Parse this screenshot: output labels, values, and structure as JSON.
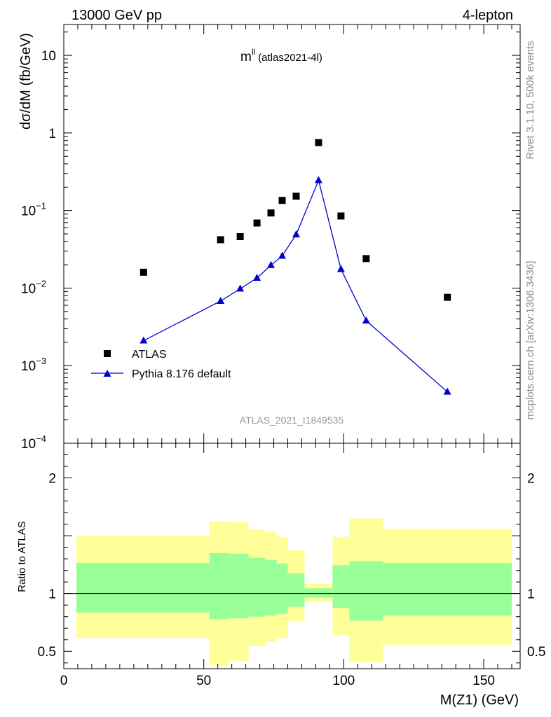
{
  "header": {
    "left": "13000 GeV pp",
    "right": "4-lepton"
  },
  "plot_label": {
    "main": "m",
    "sup": "ll",
    "sub": "(atlas2021-4l)"
  },
  "side_label_top": "Rivet 3.1.10,  500k events",
  "side_label_bottom": "mcplots.cern.ch [arXiv:1306.3436]",
  "watermark": "ATLAS_2021_I1849535",
  "colors": {
    "data": "#000000",
    "mc": "#0000cc",
    "band_inner": "#99ff99",
    "band_outer": "#ffff99",
    "watermark": "#999999"
  },
  "chart_data": [
    {
      "type": "scatter",
      "ylabel": "dσ/dM (fb/GeV)",
      "yscale": "log",
      "ylim": [
        0.0001,
        25
      ],
      "xlim": [
        0,
        163
      ],
      "y_ticks": [
        {
          "value": 10,
          "base": "10",
          "exp": ""
        },
        {
          "value": 1,
          "base": "1",
          "exp": ""
        },
        {
          "value": 0.1,
          "base": "10",
          "exp": "−1"
        },
        {
          "value": 0.01,
          "base": "10",
          "exp": "−2"
        },
        {
          "value": 0.001,
          "base": "10",
          "exp": "−3"
        },
        {
          "value": 0.0001,
          "base": "10",
          "exp": "−4"
        }
      ],
      "legend_position": "lower-left",
      "series": [
        {
          "name": "ATLAS",
          "marker": "square",
          "x": [
            28.5,
            56,
            63,
            69,
            74,
            78,
            83,
            91,
            99,
            108,
            137
          ],
          "y": [
            0.016,
            0.042,
            0.046,
            0.069,
            0.093,
            0.135,
            0.153,
            0.75,
            0.085,
            0.024,
            0.0076
          ]
        },
        {
          "name": "Pythia 8.176 default",
          "marker": "triangle",
          "x": [
            28.5,
            56,
            63,
            69,
            74,
            78,
            83,
            91,
            99,
            108,
            137
          ],
          "y": [
            0.0021,
            0.0068,
            0.0098,
            0.0135,
            0.0197,
            0.026,
            0.049,
            0.245,
            0.0175,
            0.0038,
            0.00046
          ]
        }
      ]
    },
    {
      "type": "area",
      "ylabel": "Ratio to ATLAS",
      "xlabel": "M(Z1) (GeV)",
      "xlim": [
        0,
        163
      ],
      "ylim": [
        0.35,
        2.3
      ],
      "x_ticks": [
        0,
        50,
        100,
        150
      ],
      "y_ticks": [
        {
          "value": 2,
          "label": "2"
        },
        {
          "value": 1,
          "label": "1"
        },
        {
          "value": 0.5,
          "label": "0.5"
        }
      ],
      "reference_line": 1,
      "bins": [
        {
          "x0": 4.5,
          "x1": 52,
          "inner": [
            0.835,
            1.265
          ],
          "outer": [
            0.615,
            1.5
          ]
        },
        {
          "x0": 52,
          "x1": 59,
          "inner": [
            0.78,
            1.35
          ],
          "outer": [
            0.38,
            1.625
          ]
        },
        {
          "x0": 59,
          "x1": 66,
          "inner": [
            0.785,
            1.345
          ],
          "outer": [
            0.415,
            1.615
          ]
        },
        {
          "x0": 66,
          "x1": 72,
          "inner": [
            0.8,
            1.31
          ],
          "outer": [
            0.545,
            1.555
          ]
        },
        {
          "x0": 72,
          "x1": 76,
          "inner": [
            0.81,
            1.29
          ],
          "outer": [
            0.58,
            1.535
          ]
        },
        {
          "x0": 76,
          "x1": 80,
          "inner": [
            0.825,
            1.26
          ],
          "outer": [
            0.615,
            1.49
          ]
        },
        {
          "x0": 80,
          "x1": 86,
          "inner": [
            0.885,
            1.175
          ],
          "outer": [
            0.76,
            1.375
          ]
        },
        {
          "x0": 86,
          "x1": 96,
          "inner": [
            0.965,
            1.045
          ],
          "outer": [
            0.925,
            1.085
          ]
        },
        {
          "x0": 96,
          "x1": 102,
          "inner": [
            0.875,
            1.245
          ],
          "outer": [
            0.64,
            1.49
          ]
        },
        {
          "x0": 102,
          "x1": 114,
          "inner": [
            0.765,
            1.28
          ],
          "outer": [
            0.405,
            1.65
          ]
        },
        {
          "x0": 114,
          "x1": 160,
          "inner": [
            0.81,
            1.265
          ],
          "outer": [
            0.555,
            1.56
          ]
        }
      ]
    }
  ]
}
